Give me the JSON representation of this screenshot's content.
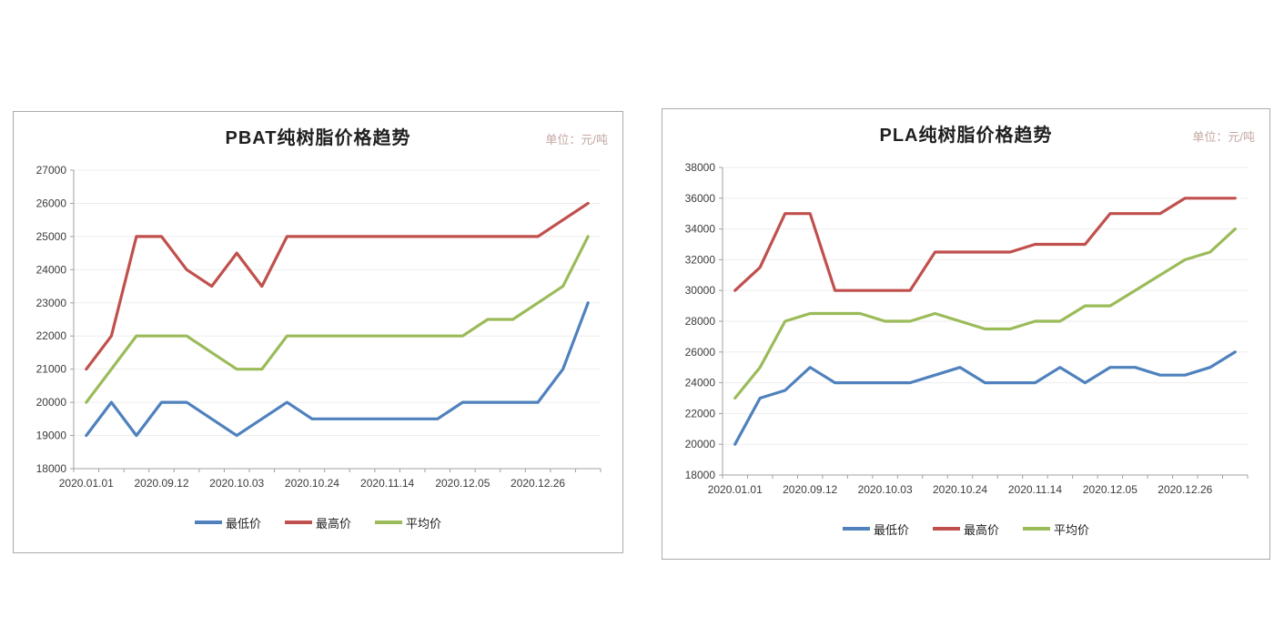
{
  "palette": {
    "grid": "#ededed",
    "axis": "#a0a0a0",
    "tick": "#a0a0a0",
    "axis_text": "#3b3b3b",
    "unit_text": "#c3a8a3",
    "panel_border": "#ababab",
    "series_blue": "#4F81BD",
    "series_red": "#C0504D",
    "series_green": "#9BBB59"
  },
  "chart_data": [
    {
      "type": "line",
      "title": "PBAT纯树脂价格趋势",
      "unit_label": "单位：元/吨",
      "ylim": [
        18000,
        27000
      ],
      "y_step": 1000,
      "grid": true,
      "legend_position": "bottom",
      "x_label_every": 3,
      "x_tick_labels": [
        "2020.01.01",
        "2020.09.12",
        "2020.10.03",
        "2020.10.24",
        "2020.11.14",
        "2020.12.05",
        "2020.12.26"
      ],
      "series": [
        {
          "name": "最低价",
          "color": "#4F81BD",
          "values": [
            19000,
            20000,
            19000,
            20000,
            20000,
            19500,
            19000,
            19500,
            20000,
            19500,
            19500,
            19500,
            19500,
            19500,
            19500,
            20000,
            20000,
            20000,
            20000,
            21000,
            23000
          ]
        },
        {
          "name": "最高价",
          "color": "#C0504D",
          "values": [
            21000,
            22000,
            25000,
            25000,
            24000,
            23500,
            24500,
            23500,
            25000,
            25000,
            25000,
            25000,
            25000,
            25000,
            25000,
            25000,
            25000,
            25000,
            25000,
            25500,
            26000
          ]
        },
        {
          "name": "平均价",
          "color": "#9BBB59",
          "values": [
            20000,
            21000,
            22000,
            22000,
            22000,
            21500,
            21000,
            21000,
            22000,
            22000,
            22000,
            22000,
            22000,
            22000,
            22000,
            22000,
            22500,
            22500,
            23000,
            23500,
            25000
          ]
        }
      ]
    },
    {
      "type": "line",
      "title": "PLA纯树脂价格趋势",
      "unit_label": "单位：元/吨",
      "ylim": [
        18000,
        38000
      ],
      "y_step": 2000,
      "grid": true,
      "legend_position": "bottom",
      "x_label_every": 3,
      "x_tick_labels": [
        "2020.01.01",
        "2020.09.12",
        "2020.10.03",
        "2020.10.24",
        "2020.11.14",
        "2020.12.05",
        "2020.12.26"
      ],
      "series": [
        {
          "name": "最低价",
          "color": "#4F81BD",
          "values": [
            20000,
            23000,
            23500,
            25000,
            24000,
            24000,
            24000,
            24000,
            24500,
            25000,
            24000,
            24000,
            24000,
            25000,
            24000,
            25000,
            25000,
            24500,
            24500,
            25000,
            26000
          ]
        },
        {
          "name": "最高价",
          "color": "#C0504D",
          "values": [
            30000,
            31500,
            35000,
            35000,
            30000,
            30000,
            30000,
            30000,
            32500,
            32500,
            32500,
            32500,
            33000,
            33000,
            33000,
            35000,
            35000,
            35000,
            36000,
            36000,
            36000
          ]
        },
        {
          "name": "平均价",
          "color": "#9BBB59",
          "values": [
            23000,
            25000,
            28000,
            28500,
            28500,
            28500,
            28000,
            28000,
            28500,
            28000,
            27500,
            27500,
            28000,
            28000,
            29000,
            29000,
            30000,
            31000,
            32000,
            32500,
            34000
          ]
        }
      ]
    }
  ]
}
